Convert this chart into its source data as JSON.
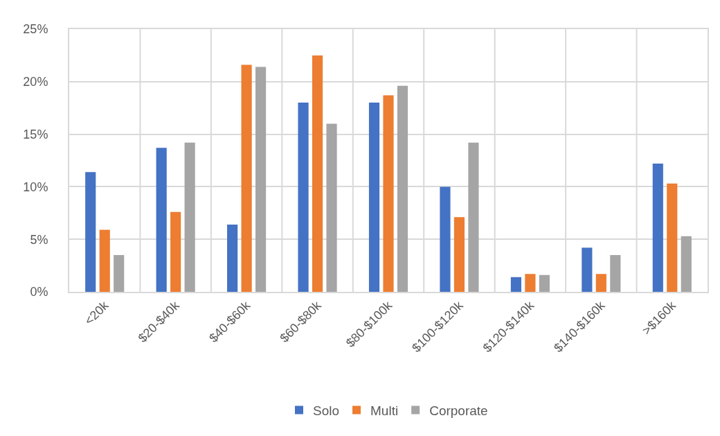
{
  "chart_data": {
    "type": "bar",
    "categories": [
      "<20k",
      "$20-$40k",
      "$40-$60k",
      "$60-$80k",
      "$80-$100k",
      "$100-$120k",
      "$120-$140k",
      "$140-$160k",
      ">$160k"
    ],
    "series": [
      {
        "name": "Solo",
        "color": "#4472c4",
        "values": [
          11.4,
          13.7,
          6.4,
          18.0,
          18.0,
          10.0,
          1.4,
          4.2,
          12.2
        ]
      },
      {
        "name": "Multi",
        "color": "#ed7d31",
        "values": [
          5.9,
          7.6,
          21.6,
          22.5,
          18.7,
          7.1,
          1.7,
          1.7,
          10.3
        ]
      },
      {
        "name": "Corporate",
        "color": "#a5a5a5",
        "values": [
          3.5,
          14.2,
          21.4,
          16.0,
          19.6,
          14.2,
          1.6,
          3.5,
          5.3
        ]
      }
    ],
    "ylim": [
      0,
      25
    ],
    "yticks": [
      {
        "value": 0,
        "label": "0%"
      },
      {
        "value": 5,
        "label": "5%"
      },
      {
        "value": 10,
        "label": "10%"
      },
      {
        "value": 15,
        "label": "15%"
      },
      {
        "value": 20,
        "label": "20%"
      },
      {
        "value": 25,
        "label": "25%"
      }
    ],
    "grid": true,
    "legend": "bottom"
  }
}
